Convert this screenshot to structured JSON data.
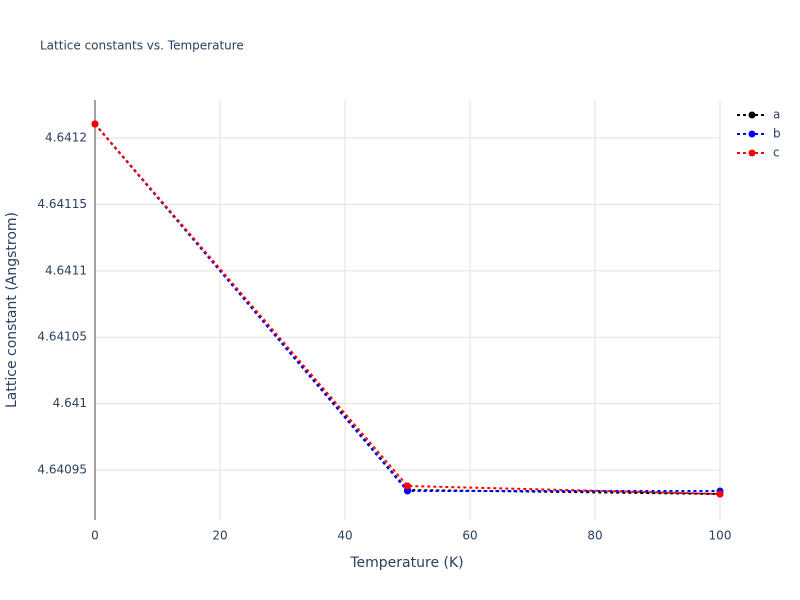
{
  "chart_data": {
    "type": "line",
    "title": "Lattice constants vs. Temperature",
    "x_label": "Temperature (K)",
    "y_label": "Lattice constant (Angstrom)",
    "x": [
      0,
      50,
      100
    ],
    "series": [
      {
        "name": "a",
        "color": "#000000",
        "values": [
          4.6412105,
          4.640935,
          4.640932
        ]
      },
      {
        "name": "b",
        "color": "#0000ff",
        "values": [
          4.6412105,
          4.6409342,
          4.6409342
        ]
      },
      {
        "name": "c",
        "color": "#ff0000",
        "values": [
          4.6412105,
          4.640938,
          4.640932
        ]
      }
    ],
    "xlim": [
      0,
      100
    ],
    "xticks": [
      0,
      20,
      40,
      60,
      80,
      100
    ],
    "ylim": [
      4.6409124,
      4.6412286
    ],
    "yticks": [
      4.64095,
      4.641,
      4.64105,
      4.6411,
      4.64115,
      4.6412
    ],
    "grid": true,
    "legend": "top-right"
  }
}
